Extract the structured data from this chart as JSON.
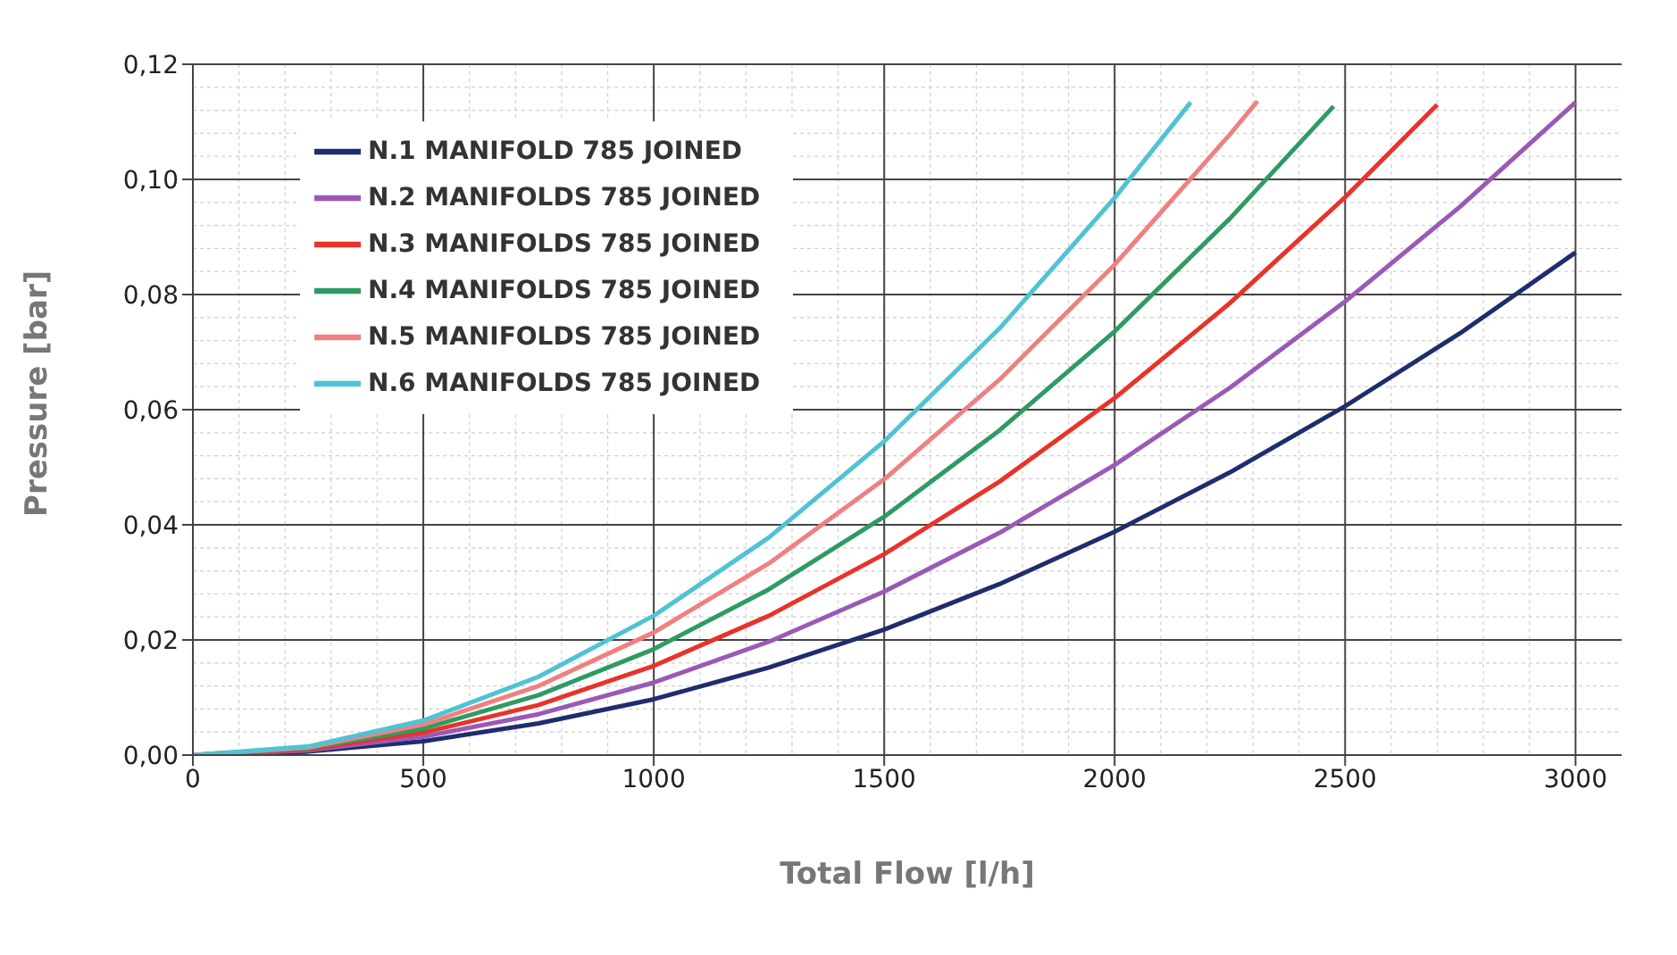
{
  "chart_data": {
    "type": "line",
    "xlabel": "Total Flow [l/h]",
    "ylabel": "Pressure [bar]",
    "xlim": [
      0,
      3100
    ],
    "xticks": [
      0,
      500,
      1000,
      1500,
      2000,
      2500,
      3000
    ],
    "ylim": [
      0,
      0.12
    ],
    "yticks": [
      {
        "value": 0,
        "label": "0,00"
      },
      {
        "value": 0.02,
        "label": "0,02"
      },
      {
        "value": 0.04,
        "label": "0,04"
      },
      {
        "value": 0.06,
        "label": "0,06"
      },
      {
        "value": 0.08,
        "label": "0,08"
      },
      {
        "value": 0.1,
        "label": "0,10"
      },
      {
        "value": 0.12,
        "label": "0,12"
      }
    ],
    "grid": true,
    "legend": "top left",
    "marker": "none",
    "line_style": "solid",
    "series": [
      {
        "name": "N.1 MANIFOLD 785 JOINED",
        "color": "#1f2d6e",
        "x": [
          0,
          250,
          500,
          750,
          1000,
          1250,
          1500,
          1750,
          2000,
          2250,
          2500,
          2750,
          3000
        ],
        "values": [
          0,
          0.0006,
          0.0024,
          0.0055,
          0.0097,
          0.0152,
          0.0218,
          0.0297,
          0.0388,
          0.0491,
          0.0606,
          0.0733,
          0.0873
        ]
      },
      {
        "name": "N.2 MANIFOLDS 785 JOINED",
        "color": "#9b59b6",
        "x": [
          0,
          250,
          500,
          750,
          1000,
          1250,
          1500,
          1750,
          2000,
          2250,
          2500,
          2750,
          3000
        ],
        "values": [
          0,
          0.0008,
          0.0032,
          0.0071,
          0.0126,
          0.0197,
          0.0284,
          0.0386,
          0.0504,
          0.0638,
          0.0788,
          0.0953,
          0.1134
        ]
      },
      {
        "name": "N.3 MANIFOLDS 785 JOINED",
        "color": "#e8332a",
        "x": [
          0,
          250,
          500,
          750,
          1000,
          1250,
          1500,
          1750,
          2000,
          2250,
          2500,
          2700
        ],
        "values": [
          0,
          0.001,
          0.0039,
          0.0087,
          0.0155,
          0.0242,
          0.0349,
          0.0475,
          0.062,
          0.0785,
          0.0969,
          0.113
        ]
      },
      {
        "name": "N.4 MANIFOLDS 785 JOINED",
        "color": "#2e9b63",
        "x": [
          0,
          250,
          500,
          750,
          1000,
          1250,
          1500,
          1750,
          2000,
          2250,
          2475
        ],
        "values": [
          0,
          0.0012,
          0.0046,
          0.0104,
          0.0184,
          0.0288,
          0.0414,
          0.0564,
          0.0736,
          0.0932,
          0.1127
        ]
      },
      {
        "name": "N.5 MANIFOLDS 785 JOINED",
        "color": "#f08080",
        "x": [
          0,
          250,
          500,
          750,
          1000,
          1250,
          1500,
          1750,
          2000,
          2250,
          2310
        ],
        "values": [
          0,
          0.0013,
          0.0053,
          0.012,
          0.0213,
          0.0333,
          0.0479,
          0.0652,
          0.0852,
          0.1078,
          0.1136
        ]
      },
      {
        "name": "N.6 MANIFOLDS 785 JOINED",
        "color": "#4fc3d4",
        "x": [
          0,
          250,
          500,
          750,
          1000,
          1250,
          1500,
          1750,
          2000,
          2165
        ],
        "values": [
          0,
          0.0015,
          0.006,
          0.0136,
          0.0242,
          0.0378,
          0.0545,
          0.0741,
          0.0968,
          0.1134
        ]
      }
    ]
  }
}
